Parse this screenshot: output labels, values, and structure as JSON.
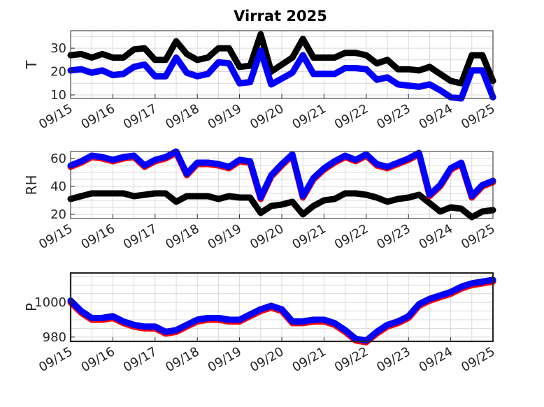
{
  "figure_title": "Virrat 2025",
  "colors": {
    "series_1": "#000000",
    "series_2": "#ff0000",
    "series_3": "#0000ff",
    "axes": "#262626",
    "grid": "#d9d9d9"
  },
  "chart_data": [
    {
      "type": "line",
      "title": "Virrat 2025",
      "xlabel": "",
      "ylabel": "T",
      "x_ticks": [
        "09/15",
        "09/16",
        "09/17",
        "09/18",
        "09/19",
        "09/20",
        "09/21",
        "09/22",
        "09/23",
        "09/24",
        "09/25"
      ],
      "xlim": [
        "09/15 00:00",
        "09/25 00:00"
      ],
      "ylim": [
        8.5,
        37.5
      ],
      "y_ticks": [
        10,
        20,
        30
      ],
      "grid": true,
      "x": [
        15,
        15.25,
        15.5,
        15.75,
        16,
        16.25,
        16.5,
        16.75,
        17,
        17.25,
        17.5,
        17.75,
        18,
        18.25,
        18.5,
        18.75,
        19,
        19.25,
        19.5,
        19.75,
        20,
        20.25,
        20.5,
        20.75,
        21,
        21.25,
        21.5,
        21.75,
        22,
        22.25,
        22.5,
        22.75,
        23,
        23.25,
        23.5,
        23.75,
        24,
        24.25,
        24.5,
        24.75,
        25
      ],
      "series": [
        {
          "color": "#000000",
          "values": [
            27,
            27.5,
            26,
            27.5,
            26,
            26,
            29.5,
            30,
            25,
            25,
            33,
            27.5,
            25,
            26,
            30,
            30,
            22,
            22.5,
            36,
            20,
            23,
            26,
            34,
            26,
            26,
            26,
            28,
            28,
            27,
            23.5,
            25,
            21,
            21,
            20.5,
            22,
            19,
            16,
            15,
            27,
            27,
            16
          ]
        },
        {
          "color": "#ff0000",
          "values": [
            20.5,
            21,
            19.5,
            20.5,
            18.5,
            19,
            22,
            23,
            18,
            18,
            26,
            19.5,
            18,
            19,
            24,
            23.5,
            15,
            15.5,
            29,
            14.5,
            17,
            19.5,
            27,
            19,
            19,
            19,
            21.5,
            21.5,
            21,
            16.5,
            17.5,
            14.5,
            14,
            13.5,
            14.5,
            12,
            9,
            8.5,
            20.5,
            20.5,
            9
          ]
        },
        {
          "color": "#0000ff",
          "values": [
            20.5,
            21,
            19.5,
            20.5,
            18.5,
            19,
            22,
            23,
            18,
            18,
            26,
            19.5,
            18,
            19,
            24,
            23.5,
            15,
            15.5,
            29,
            14.5,
            17,
            19.5,
            27,
            19,
            19,
            19,
            21.5,
            21.5,
            21,
            16.5,
            17.5,
            14.5,
            14,
            13.5,
            14.5,
            12,
            9,
            8.5,
            20.5,
            20.5,
            9
          ]
        }
      ]
    },
    {
      "type": "line",
      "title": "",
      "xlabel": "",
      "ylabel": "RH",
      "x_ticks": [
        "09/15",
        "09/16",
        "09/17",
        "09/18",
        "09/19",
        "09/20",
        "09/21",
        "09/22",
        "09/23",
        "09/24",
        "09/25"
      ],
      "xlim": [
        "09/15 00:00",
        "09/25 00:00"
      ],
      "ylim": [
        17,
        65
      ],
      "y_ticks": [
        20,
        40,
        60
      ],
      "grid": true,
      "x": [
        15,
        15.25,
        15.5,
        15.75,
        16,
        16.25,
        16.5,
        16.75,
        17,
        17.25,
        17.5,
        17.75,
        18,
        18.25,
        18.5,
        18.75,
        19,
        19.25,
        19.5,
        19.75,
        20,
        20.25,
        20.5,
        20.75,
        21,
        21.25,
        21.5,
        21.75,
        22,
        22.25,
        22.5,
        22.75,
        23,
        23.25,
        23.5,
        23.75,
        24,
        24.25,
        24.5,
        24.75,
        25
      ],
      "series": [
        {
          "color": "#000000",
          "values": [
            31,
            33,
            35,
            35,
            35,
            35,
            33,
            34,
            35,
            35,
            29,
            33,
            33,
            33,
            31,
            33,
            32,
            32,
            21,
            26,
            27,
            29,
            20,
            26,
            30,
            31,
            35,
            35,
            34,
            32,
            29,
            31,
            32,
            34,
            28,
            22,
            25,
            24,
            18,
            22,
            23
          ]
        },
        {
          "color": "#ff0000",
          "values": [
            54,
            57,
            61,
            60,
            58,
            60,
            61,
            54,
            58,
            60,
            64,
            48,
            56,
            56,
            55,
            53,
            58,
            57,
            31,
            47,
            55,
            62,
            32,
            45,
            52,
            57,
            61,
            58,
            62,
            55,
            53,
            56,
            59,
            63,
            33,
            40,
            52,
            56,
            32,
            40,
            43
          ]
        },
        {
          "color": "#0000ff",
          "values": [
            55,
            58,
            62,
            61,
            59,
            61,
            62,
            55,
            59,
            61,
            65,
            49,
            57,
            57,
            56,
            54,
            59,
            58,
            32,
            48,
            56,
            63,
            33,
            46,
            53,
            58,
            62,
            59,
            63,
            56,
            54,
            57,
            60,
            64,
            34,
            41,
            53,
            57,
            33,
            41,
            44
          ]
        }
      ]
    },
    {
      "type": "line",
      "title": "",
      "xlabel": "",
      "ylabel": "P",
      "x_ticks": [
        "09/15",
        "09/16",
        "09/17",
        "09/18",
        "09/19",
        "09/20",
        "09/21",
        "09/22",
        "09/23",
        "09/24",
        "09/25"
      ],
      "xlim": [
        "09/15 00:00",
        "09/25 00:00"
      ],
      "ylim": [
        977.5,
        1017
      ],
      "y_ticks": [
        980,
        1000
      ],
      "grid": true,
      "x": [
        15,
        15.25,
        15.5,
        15.75,
        16,
        16.25,
        16.5,
        16.75,
        17,
        17.25,
        17.5,
        17.75,
        18,
        18.25,
        18.5,
        18.75,
        19,
        19.25,
        19.5,
        19.75,
        20,
        20.25,
        20.5,
        20.75,
        21,
        21.25,
        21.5,
        21.75,
        22,
        22.25,
        22.5,
        22.75,
        23,
        23.25,
        23.5,
        23.75,
        24,
        24.25,
        24.5,
        24.75,
        25
      ],
      "series": [
        {
          "color": "#000000",
          "values": [
            1001,
            995,
            991,
            991,
            992,
            989,
            987,
            986,
            986,
            983,
            984,
            987,
            990,
            991,
            991,
            990,
            990,
            993,
            996,
            998,
            996,
            989,
            989,
            990,
            990,
            988,
            984,
            979,
            978,
            983,
            987,
            989,
            992,
            999,
            1002,
            1004,
            1006,
            1009,
            1011,
            1012,
            1013
          ]
        },
        {
          "color": "#ff0000",
          "values": [
            1000,
            994,
            990,
            990,
            991,
            988,
            986,
            985,
            985,
            982,
            983,
            986,
            989,
            990,
            990,
            989,
            989,
            992,
            995,
            997,
            995,
            988,
            988,
            989,
            989,
            987,
            983,
            978,
            977,
            982,
            986,
            988,
            991,
            998,
            1001,
            1003,
            1005,
            1008,
            1010,
            1011,
            1012
          ]
        },
        {
          "color": "#0000ff",
          "values": [
            1001,
            995,
            991,
            991,
            992,
            989,
            987,
            986,
            986,
            983,
            984,
            987,
            990,
            991,
            991,
            990,
            990,
            993,
            996,
            998,
            996,
            989,
            989,
            990,
            990,
            988,
            984,
            979,
            978,
            983,
            987,
            989,
            992,
            999,
            1002,
            1004,
            1006,
            1009,
            1011,
            1012,
            1013
          ]
        }
      ]
    }
  ]
}
